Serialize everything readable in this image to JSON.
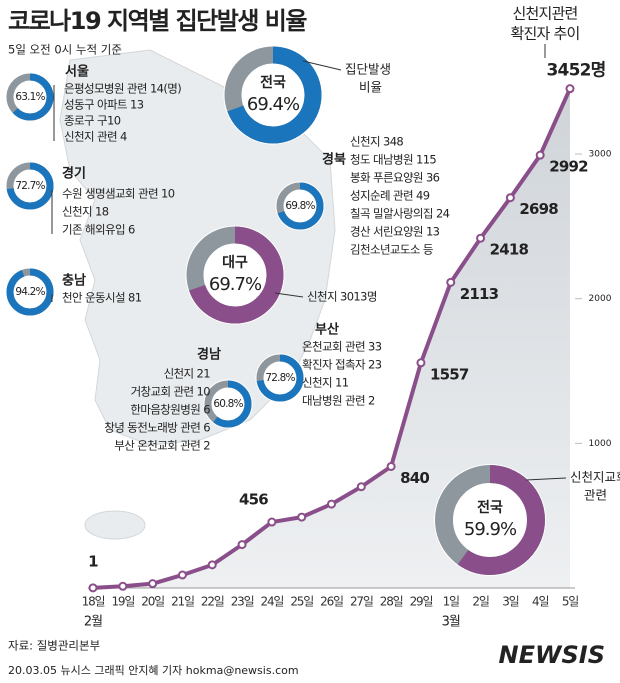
{
  "title": "코로나19 지역별 집단발생 비율",
  "subtitle": "5일 오전 0시 누적 기준",
  "donuts": [
    {
      "name": "전국",
      "value": 69.4,
      "label": "69.4%",
      "color": "#1b75bc",
      "caption": [
        "집단발생",
        "비율"
      ]
    },
    {
      "name": "서울",
      "value": 63.1,
      "label": "63.1%",
      "color": "#1b75bc",
      "items": [
        "은평성모병원 관련 14(명)",
        "성동구 아파트 13",
        "종로구 구10",
        "신천지 관련 4"
      ]
    },
    {
      "name": "경기",
      "value": 72.7,
      "label": "72.7%",
      "color": "#1b75bc",
      "items": [
        "수원 생명샘교회 관련 10",
        "신천지 18",
        "기존 해외유입 6"
      ]
    },
    {
      "name": "충남",
      "value": 94.2,
      "label": "94.2%",
      "color": "#1b75bc",
      "items": [
        "천안 운동시설 81"
      ]
    },
    {
      "name": "경북",
      "value": 69.8,
      "label": "69.8%",
      "color": "#1b75bc",
      "items": [
        "신천지 348",
        "청도 대남병원 115",
        "봉화 푸른요양원 36",
        "성지순례 관련 49",
        "칠곡 밀알사랑의집 24",
        "경산 서린요양원 13",
        "김천소년교도소 등"
      ]
    },
    {
      "name": "대구",
      "value": 69.7,
      "label": "69.7%",
      "color": "#8a4f8a",
      "items": [
        "신천지 3013명"
      ]
    },
    {
      "name": "부산",
      "value": 72.8,
      "label": "72.8%",
      "color": "#1b75bc",
      "items": [
        "온천교회 관련 33",
        "확진자 접촉자 23",
        "신천지 11",
        "대남병원 관련 2"
      ]
    },
    {
      "name": "경남",
      "value": 60.8,
      "label": "60.8%",
      "color": "#1b75bc",
      "items": [
        "신천지 21",
        "거창교회 관련 10",
        "한마음창원병원 6",
        "창녕 동전노래방 관련 6",
        "부산 온천교회 관련 2"
      ]
    },
    {
      "name": "전국",
      "value": 59.9,
      "label": "59.9%",
      "color": "#8a4f8a",
      "caption": [
        "신천지교회",
        "관련"
      ]
    }
  ],
  "chart_data": {
    "type": "line",
    "title": [
      "신천지관련",
      "확진자 추이"
    ],
    "categories": [
      "18일",
      "19일",
      "20일",
      "21일",
      "22일",
      "23일",
      "24일",
      "25일",
      "26일",
      "27일",
      "28일",
      "29일",
      "1일",
      "2일",
      "3일",
      "4일",
      "5일"
    ],
    "months": [
      "2월",
      null,
      null,
      null,
      null,
      null,
      null,
      null,
      null,
      null,
      null,
      null,
      "3월",
      null,
      null,
      null,
      null
    ],
    "values": [
      1,
      12,
      30,
      90,
      160,
      300,
      456,
      490,
      580,
      700,
      840,
      1557,
      2113,
      2418,
      2698,
      2992,
      3452
    ],
    "value_labels": [
      "1",
      null,
      null,
      null,
      null,
      null,
      "456",
      null,
      null,
      null,
      "840",
      "1557",
      "2113",
      "2418",
      "2698",
      "2992",
      "3452명"
    ],
    "color": "#8a4f8a",
    "ylim": [
      0,
      3650
    ],
    "yticks": [
      1000,
      2000,
      3000
    ]
  },
  "source": "자료: 질병관리본부",
  "credit": "20.03.05 뉴시스 그래픽 안지혜 기자 hokma@newsis.com",
  "logo": "NEWSIS"
}
